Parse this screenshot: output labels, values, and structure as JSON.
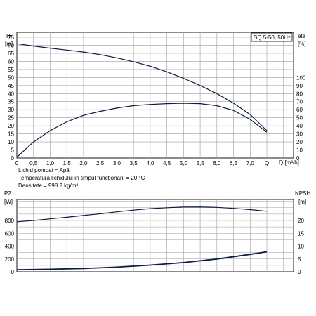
{
  "chart_data": [
    {
      "type": "line",
      "title": "SQ 5-50, 50Hz",
      "xlabel": "Q [m³/h]",
      "ylabel": "H [m]",
      "ylabel_right": "eta [%]",
      "xlim": [
        0,
        8
      ],
      "ylim": [
        0,
        80
      ],
      "ylim_right": [
        0,
        160
      ],
      "x_ticks": [
        "0",
        "0.5",
        "1.0",
        "1.5",
        "2.0",
        "2.5",
        "3.0",
        "3.5",
        "4.0",
        "4.5",
        "5.0",
        "5.5",
        "6.0",
        "6.5",
        "7.0"
      ],
      "y_ticks": [
        "0",
        "5",
        "10",
        "15",
        "20",
        "25",
        "30",
        "35",
        "40",
        "45",
        "50",
        "55",
        "60",
        "65",
        "70",
        "75"
      ],
      "y_ticks_right": [
        "0",
        "10",
        "20",
        "30",
        "40",
        "50",
        "60",
        "70",
        "80",
        "90",
        "100"
      ],
      "grid": true,
      "notes": [
        "Lichid pompat = Apă",
        "Temperatura lichidului în timpul funcționării = 20 °C",
        "Densitate = 998.2 kg/m³"
      ],
      "series": [
        {
          "axis": "left",
          "x": [
            0,
            0.5,
            1.0,
            1.5,
            2.0,
            2.5,
            3.0,
            3.5,
            4.0,
            4.5,
            5.0,
            5.5,
            6.0,
            6.5,
            7.0,
            7.5
          ],
          "y": [
            71,
            69.5,
            68.2,
            67,
            65.8,
            64.2,
            62.2,
            59.8,
            57,
            53.5,
            49.5,
            45,
            40,
            34,
            27,
            17
          ]
        },
        {
          "axis": "right",
          "x": [
            0,
            0.5,
            1.0,
            1.5,
            2.0,
            2.5,
            3.0,
            3.5,
            4.0,
            4.5,
            5.0,
            5.5,
            6.0,
            6.5,
            7.0,
            7.5
          ],
          "y": [
            1,
            20,
            34,
            45,
            53,
            58,
            62,
            65,
            66.5,
            67.5,
            68,
            67.5,
            65,
            59,
            48,
            32
          ]
        }
      ]
    },
    {
      "type": "line",
      "xlabel": "",
      "ylabel": "P2 [W]",
      "ylabel_right": "NPSH [m]",
      "xlim": [
        0,
        8
      ],
      "ylim": [
        0,
        1000
      ],
      "ylim_right": [
        0,
        25
      ],
      "y_ticks": [
        "0",
        "200",
        "400",
        "600",
        "800"
      ],
      "y_ticks_right": [
        "0",
        "5",
        "10",
        "15",
        "20"
      ],
      "grid": true,
      "series": [
        {
          "axis": "left",
          "x": [
            0,
            0.5,
            1.0,
            1.5,
            2.0,
            2.5,
            3.0,
            3.5,
            4.0,
            4.5,
            5.0,
            5.5,
            6.0,
            6.5,
            7.0,
            7.5
          ],
          "y": [
            780,
            800,
            825,
            850,
            878,
            905,
            935,
            962,
            985,
            1000,
            1010,
            1012,
            1005,
            990,
            970,
            945
          ]
        },
        {
          "axis": "right",
          "x": [
            0,
            1,
            2,
            3,
            4,
            5,
            6,
            7,
            7.5
          ],
          "y": [
            0.8,
            1.0,
            1.3,
            1.8,
            2.6,
            3.6,
            5.0,
            6.8,
            7.8
          ]
        }
      ]
    }
  ]
}
